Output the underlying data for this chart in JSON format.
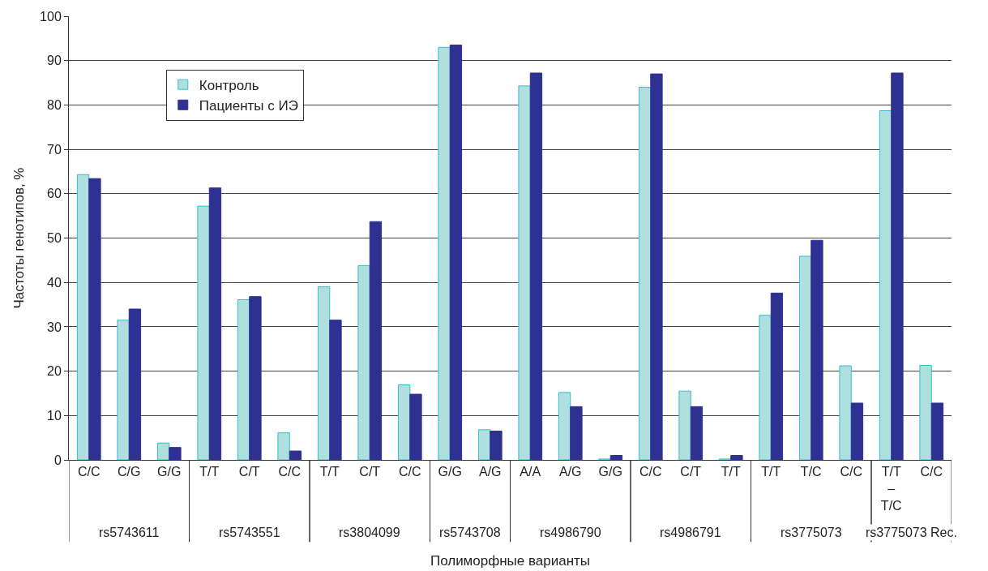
{
  "chart_data": {
    "type": "bar",
    "xlabel": "Полиморфные варианты",
    "ylabel": "Частоты генотипов, %",
    "categories": [
      "C/C",
      "C/G",
      "G/G",
      "T/T",
      "C/T",
      "C/C",
      "T/T",
      "C/T",
      "C/C",
      "G/G",
      "A/G",
      "A/A",
      "A/G",
      "G/G",
      "C/C",
      "C/T",
      "T/T",
      "T/T",
      "T/C",
      "C/C",
      "T/T\n–\nT/C",
      "C/C"
    ],
    "annotations": [
      "rs5743611",
      "rs5743551",
      "rs3804099",
      "rs5743708",
      "rs4986790",
      "rs4986791",
      "rs3775073",
      "rs3775073 Rec."
    ],
    "series": [
      {
        "name": "Контроль",
        "color": "#b0dfe0",
        "values": [
          64.3,
          31.5,
          3.8,
          57.2,
          36.1,
          6.1,
          39.0,
          43.8,
          16.9,
          93.0,
          6.8,
          84.3,
          15.2,
          0.2,
          84.0,
          15.5,
          0.2,
          32.6,
          45.9,
          21.2,
          78.7,
          21.3
        ]
      },
      {
        "name": "Пациенты с ИЭ",
        "color": "#2e3192",
        "values": [
          63.4,
          34.0,
          2.8,
          61.3,
          36.8,
          2.0,
          31.5,
          53.7,
          14.8,
          93.5,
          6.5,
          87.2,
          12.0,
          1.0,
          87.0,
          12.0,
          1.0,
          37.6,
          49.5,
          12.8,
          87.2,
          12.8
        ]
      }
    ],
    "ylim": [
      0,
      100
    ],
    "yticks": [
      0,
      10,
      20,
      30,
      40,
      50,
      60,
      70,
      80,
      90,
      100
    ],
    "grid": "y",
    "legend": "top left"
  }
}
